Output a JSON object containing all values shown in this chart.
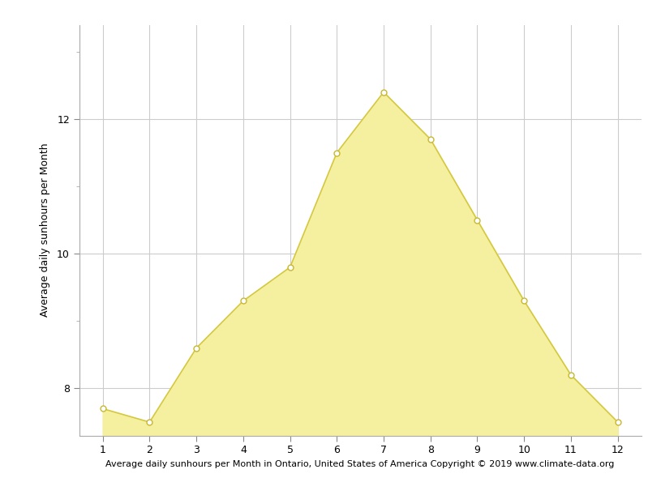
{
  "months": [
    1,
    2,
    3,
    4,
    5,
    6,
    7,
    8,
    9,
    10,
    11,
    12
  ],
  "sunhours": [
    7.7,
    7.5,
    8.6,
    9.3,
    9.8,
    11.5,
    12.4,
    11.7,
    10.5,
    9.3,
    8.2,
    7.5
  ],
  "fill_color": "#F5F0A0",
  "line_color": "#D4C840",
  "marker_facecolor": "#FFFFFF",
  "marker_edgecolor": "#C8B830",
  "ylabel": "Average daily sunhours per Month",
  "xlabel": "Average daily sunhours per Month in Ontario, United States of America Copyright © 2019 www.climate-data.org",
  "xlim": [
    0.5,
    12.5
  ],
  "ylim": [
    7.3,
    13.4
  ],
  "yticks": [
    8,
    10,
    12
  ],
  "xticks": [
    1,
    2,
    3,
    4,
    5,
    6,
    7,
    8,
    9,
    10,
    11,
    12
  ],
  "grid_color": "#CCCCCC",
  "background_color": "#FFFFFF",
  "ylabel_fontsize": 9,
  "xlabel_fontsize": 8,
  "tick_labelsize": 9
}
